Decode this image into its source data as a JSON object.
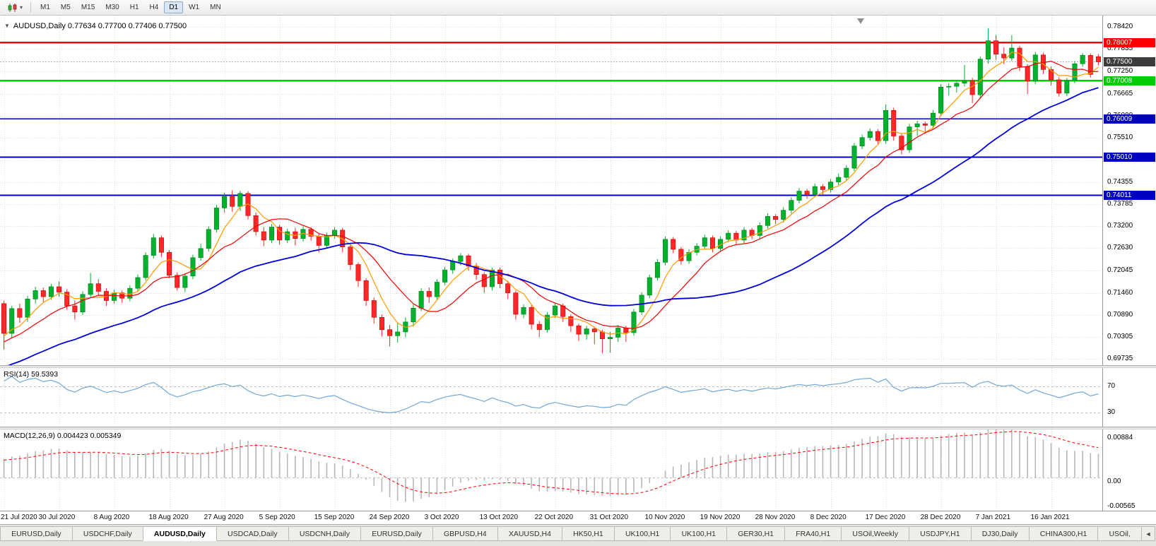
{
  "window": {
    "toolbar": {
      "timeframes": [
        "M1",
        "M5",
        "M15",
        "M30",
        "H1",
        "H4",
        "D1",
        "W1",
        "MN"
      ],
      "active_timeframe": "D1"
    },
    "tabs": {
      "items": [
        "EURUSD,Daily",
        "USDCHF,Daily",
        "AUDUSD,Daily",
        "USDCAD,Daily",
        "USDCNH,Daily",
        "EURUSD,Daily",
        "GBPUSD,H4",
        "XAUUSD,H4",
        "HK50,H1",
        "UK100,H1",
        "UK100,H1",
        "GER30,H1",
        "FRA40,H1",
        "USOil,Weekly",
        "USDJPY,H1",
        "DJ30,Daily",
        "CHINA300,H1",
        "USOil,"
      ],
      "active_index": 2,
      "scroll_left_glyph": "◄"
    }
  },
  "chart": {
    "title": "AUDUSD,Daily 0.77634 0.77700 0.77406 0.77500",
    "symbol": "AUDUSD",
    "timeframe": "Daily",
    "open": "0.77634",
    "high": "0.77700",
    "low": "0.77406",
    "close": "0.77500"
  },
  "chart_data": {
    "type": "candlestick",
    "title": "AUDUSD,Daily",
    "x_labels": [
      "21 Jul 2020",
      "30 Jul 2020",
      "8 Aug 2020",
      "18 Aug 2020",
      "27 Aug 2020",
      "5 Sep 2020",
      "15 Sep 2020",
      "24 Sep 2020",
      "3 Oct 2020",
      "13 Oct 2020",
      "22 Oct 2020",
      "31 Oct 2020",
      "10 Nov 2020",
      "19 Nov 2020",
      "28 Nov 2020",
      "8 Dec 2020",
      "17 Dec 2020",
      "28 Dec 2020",
      "7 Jan 2021",
      "16 Jan 2021"
    ],
    "x_label_step": 7,
    "price_range": [
      0.6957,
      0.7871
    ],
    "price_ticks": [
      0.7842,
      0.77835,
      0.7725,
      0.76665,
      0.7608,
      0.7551,
      0.74925,
      0.74355,
      0.73785,
      0.732,
      0.7263,
      0.72045,
      0.7146,
      0.7089,
      0.70305,
      0.69735
    ],
    "bull_color": "#00b22c",
    "bear_color": "#ff2727",
    "candles": [
      [
        0.7118,
        0.7126,
        0.6998,
        0.704
      ],
      [
        0.704,
        0.7112,
        0.7028,
        0.7105
      ],
      [
        0.7105,
        0.7118,
        0.7068,
        0.7082
      ],
      [
        0.7082,
        0.7138,
        0.707,
        0.713
      ],
      [
        0.713,
        0.7162,
        0.7118,
        0.7152
      ],
      [
        0.7152,
        0.716,
        0.7122,
        0.7136
      ],
      [
        0.7136,
        0.717,
        0.7128,
        0.7162
      ],
      [
        0.7162,
        0.7176,
        0.7136,
        0.7148
      ],
      [
        0.7148,
        0.7156,
        0.7102,
        0.7112
      ],
      [
        0.7112,
        0.7126,
        0.7076,
        0.7096
      ],
      [
        0.7096,
        0.715,
        0.7088,
        0.7142
      ],
      [
        0.7142,
        0.7198,
        0.7134,
        0.717
      ],
      [
        0.717,
        0.7182,
        0.714,
        0.715
      ],
      [
        0.715,
        0.7158,
        0.7112,
        0.7126
      ],
      [
        0.7126,
        0.7154,
        0.7118,
        0.7146
      ],
      [
        0.7146,
        0.7152,
        0.712,
        0.7132
      ],
      [
        0.7132,
        0.7166,
        0.7124,
        0.7158
      ],
      [
        0.7158,
        0.7194,
        0.715,
        0.7186
      ],
      [
        0.7186,
        0.7252,
        0.7178,
        0.7244
      ],
      [
        0.7244,
        0.73,
        0.7236,
        0.729
      ],
      [
        0.729,
        0.7296,
        0.724,
        0.7252
      ],
      [
        0.7252,
        0.7258,
        0.7184,
        0.7192
      ],
      [
        0.7192,
        0.72,
        0.7152,
        0.716
      ],
      [
        0.716,
        0.7198,
        0.7148,
        0.719
      ],
      [
        0.719,
        0.7246,
        0.7182,
        0.7238
      ],
      [
        0.7238,
        0.7274,
        0.723,
        0.7262
      ],
      [
        0.7262,
        0.732,
        0.7254,
        0.7312
      ],
      [
        0.7312,
        0.7376,
        0.7304,
        0.7368
      ],
      [
        0.7368,
        0.7408,
        0.7356,
        0.7398
      ],
      [
        0.7398,
        0.7414,
        0.7358,
        0.7372
      ],
      [
        0.7372,
        0.7413,
        0.736,
        0.7406
      ],
      [
        0.7406,
        0.7412,
        0.7338,
        0.7348
      ],
      [
        0.7348,
        0.7356,
        0.7296,
        0.7306
      ],
      [
        0.7306,
        0.7318,
        0.7268,
        0.7284
      ],
      [
        0.7284,
        0.7326,
        0.7276,
        0.7318
      ],
      [
        0.7318,
        0.7324,
        0.7272,
        0.7284
      ],
      [
        0.7284,
        0.7314,
        0.7276,
        0.7306
      ],
      [
        0.7306,
        0.7316,
        0.727,
        0.7288
      ],
      [
        0.7288,
        0.732,
        0.728,
        0.7312
      ],
      [
        0.7312,
        0.7318,
        0.7282,
        0.7294
      ],
      [
        0.7294,
        0.7302,
        0.7252,
        0.727
      ],
      [
        0.727,
        0.7304,
        0.7262,
        0.7296
      ],
      [
        0.7296,
        0.7318,
        0.7288,
        0.731
      ],
      [
        0.731,
        0.7316,
        0.7252,
        0.7266
      ],
      [
        0.7266,
        0.7272,
        0.7206,
        0.722
      ],
      [
        0.722,
        0.7226,
        0.7162,
        0.7178
      ],
      [
        0.7178,
        0.7184,
        0.7112,
        0.7126
      ],
      [
        0.7126,
        0.7134,
        0.7066,
        0.7082
      ],
      [
        0.7082,
        0.709,
        0.7032,
        0.705
      ],
      [
        0.705,
        0.7062,
        0.7006,
        0.7034
      ],
      [
        0.7034,
        0.7066,
        0.7016,
        0.7044
      ],
      [
        0.7044,
        0.7082,
        0.703,
        0.707
      ],
      [
        0.707,
        0.7116,
        0.7058,
        0.7106
      ],
      [
        0.7106,
        0.7158,
        0.7098,
        0.715
      ],
      [
        0.715,
        0.716,
        0.712,
        0.7136
      ],
      [
        0.7136,
        0.7182,
        0.7128,
        0.7174
      ],
      [
        0.7174,
        0.7214,
        0.7166,
        0.7206
      ],
      [
        0.7206,
        0.7236,
        0.7196,
        0.7228
      ],
      [
        0.7228,
        0.725,
        0.7218,
        0.7243
      ],
      [
        0.7243,
        0.7248,
        0.7204,
        0.7216
      ],
      [
        0.7216,
        0.7224,
        0.718,
        0.7194
      ],
      [
        0.7194,
        0.72,
        0.7146,
        0.7162
      ],
      [
        0.7162,
        0.7212,
        0.7152,
        0.7206
      ],
      [
        0.7206,
        0.7212,
        0.7158,
        0.717
      ],
      [
        0.717,
        0.7178,
        0.713,
        0.7146
      ],
      [
        0.7146,
        0.7152,
        0.7076,
        0.709
      ],
      [
        0.709,
        0.7116,
        0.708,
        0.7108
      ],
      [
        0.7108,
        0.7114,
        0.705,
        0.7064
      ],
      [
        0.7064,
        0.7072,
        0.703,
        0.705
      ],
      [
        0.705,
        0.7096,
        0.7042,
        0.7088
      ],
      [
        0.7088,
        0.712,
        0.708,
        0.7112
      ],
      [
        0.7112,
        0.7118,
        0.707,
        0.7084
      ],
      [
        0.7084,
        0.709,
        0.7044,
        0.706
      ],
      [
        0.706,
        0.7066,
        0.702,
        0.7038
      ],
      [
        0.7038,
        0.706,
        0.7024,
        0.7052
      ],
      [
        0.7052,
        0.7058,
        0.7012,
        0.7044
      ],
      [
        0.7044,
        0.705,
        0.6988,
        0.7026
      ],
      [
        0.7026,
        0.7044,
        0.699,
        0.703
      ],
      [
        0.703,
        0.7062,
        0.7018,
        0.7054
      ],
      [
        0.7054,
        0.706,
        0.7018,
        0.7042
      ],
      [
        0.7042,
        0.7104,
        0.7034,
        0.7096
      ],
      [
        0.7096,
        0.7148,
        0.7088,
        0.714
      ],
      [
        0.714,
        0.7194,
        0.7132,
        0.7186
      ],
      [
        0.7186,
        0.7234,
        0.7178,
        0.7226
      ],
      [
        0.7226,
        0.7294,
        0.7218,
        0.7286
      ],
      [
        0.7286,
        0.7292,
        0.725,
        0.726
      ],
      [
        0.726,
        0.7266,
        0.722,
        0.723
      ],
      [
        0.723,
        0.726,
        0.7222,
        0.7252
      ],
      [
        0.7252,
        0.7276,
        0.7244,
        0.7268
      ],
      [
        0.7268,
        0.7298,
        0.726,
        0.729
      ],
      [
        0.729,
        0.7296,
        0.7252,
        0.7262
      ],
      [
        0.7262,
        0.7294,
        0.7254,
        0.7286
      ],
      [
        0.7286,
        0.731,
        0.7278,
        0.7302
      ],
      [
        0.7302,
        0.7308,
        0.7274,
        0.7284
      ],
      [
        0.7284,
        0.7318,
        0.7276,
        0.731
      ],
      [
        0.731,
        0.7316,
        0.7286,
        0.7296
      ],
      [
        0.7296,
        0.733,
        0.7288,
        0.7322
      ],
      [
        0.7322,
        0.7354,
        0.7314,
        0.7346
      ],
      [
        0.7346,
        0.7352,
        0.7326,
        0.7338
      ],
      [
        0.7338,
        0.737,
        0.733,
        0.7362
      ],
      [
        0.7362,
        0.7396,
        0.7354,
        0.7388
      ],
      [
        0.7388,
        0.742,
        0.738,
        0.7412
      ],
      [
        0.7412,
        0.7418,
        0.7392,
        0.7404
      ],
      [
        0.7404,
        0.7432,
        0.7396,
        0.7424
      ],
      [
        0.7424,
        0.743,
        0.7402,
        0.7416
      ],
      [
        0.7416,
        0.7444,
        0.7408,
        0.7436
      ],
      [
        0.7436,
        0.7458,
        0.7428,
        0.7448
      ],
      [
        0.7448,
        0.748,
        0.744,
        0.7472
      ],
      [
        0.7472,
        0.7538,
        0.7464,
        0.753
      ],
      [
        0.753,
        0.756,
        0.7522,
        0.7552
      ],
      [
        0.7552,
        0.7576,
        0.7544,
        0.7568
      ],
      [
        0.7568,
        0.7574,
        0.7536,
        0.7544
      ],
      [
        0.7544,
        0.7639,
        0.7536,
        0.7623
      ],
      [
        0.7623,
        0.763,
        0.7544,
        0.7556
      ],
      [
        0.7556,
        0.7562,
        0.7508,
        0.752
      ],
      [
        0.752,
        0.7588,
        0.7512,
        0.758
      ],
      [
        0.758,
        0.7596,
        0.7556,
        0.7588
      ],
      [
        0.7588,
        0.7594,
        0.7562,
        0.7584
      ],
      [
        0.7584,
        0.7624,
        0.7576,
        0.7616
      ],
      [
        0.7616,
        0.7692,
        0.7608,
        0.7684
      ],
      [
        0.7684,
        0.7694,
        0.7662,
        0.7686
      ],
      [
        0.7686,
        0.7702,
        0.767,
        0.7694
      ],
      [
        0.7694,
        0.7742,
        0.7686,
        0.77
      ],
      [
        0.77,
        0.7708,
        0.7642,
        0.7664
      ],
      [
        0.7664,
        0.7764,
        0.7656,
        0.7757
      ],
      [
        0.7757,
        0.7838,
        0.7745,
        0.7805
      ],
      [
        0.7805,
        0.782,
        0.7755,
        0.777
      ],
      [
        0.777,
        0.7788,
        0.7744,
        0.776
      ],
      [
        0.776,
        0.782,
        0.7752,
        0.7786
      ],
      [
        0.7786,
        0.7792,
        0.7726,
        0.7738
      ],
      [
        0.7738,
        0.7744,
        0.7666,
        0.77
      ],
      [
        0.77,
        0.7776,
        0.7692,
        0.7768
      ],
      [
        0.7768,
        0.7774,
        0.7718,
        0.773
      ],
      [
        0.773,
        0.7738,
        0.7688,
        0.7703
      ],
      [
        0.7703,
        0.771,
        0.7659,
        0.7668
      ],
      [
        0.7668,
        0.7708,
        0.766,
        0.7702
      ],
      [
        0.7702,
        0.7752,
        0.7694,
        0.7745
      ],
      [
        0.7745,
        0.7773,
        0.7737,
        0.7767
      ],
      [
        0.7767,
        0.7772,
        0.7709,
        0.7717
      ],
      [
        0.77634,
        0.777,
        0.77406,
        0.775
      ]
    ],
    "pre_closes": [
      0.6852,
      0.6844,
      0.6861,
      0.6874,
      0.6868,
      0.6882,
      0.6895,
      0.6888,
      0.6902,
      0.6915,
      0.6908,
      0.6922,
      0.6935,
      0.6928,
      0.6942,
      0.6955,
      0.6948,
      0.6962,
      0.6975,
      0.6968,
      0.6982,
      0.6995,
      0.6988,
      0.7002,
      0.7015,
      0.7008,
      0.7022,
      0.7035,
      0.7028,
      0.7042
    ],
    "moving_averages": [
      {
        "name": "sma-fast",
        "period": 5,
        "color": "#ff9a00",
        "width": 1.2
      },
      {
        "name": "sma-medium",
        "period": 10,
        "color": "#f20000",
        "width": 1.2
      },
      {
        "name": "sma-slow",
        "period": 30,
        "color": "#0000dc",
        "width": 1.8
      }
    ],
    "hlines": [
      {
        "value": 0.78007,
        "label": "0.78007",
        "color": "#ff0000",
        "width": 2.4
      },
      {
        "value": 0.77008,
        "label": "0.77008",
        "color": "#00cc00",
        "width": 2.4
      },
      {
        "value": 0.76009,
        "label": "0.76009",
        "color": "#0000c0",
        "width": 1.8
      },
      {
        "value": 0.7501,
        "label": "0.75010",
        "color": "#0000c0",
        "width": 1.8
      },
      {
        "value": 0.74011,
        "label": "0.74011",
        "color": "#0000c0",
        "width": 1.8
      }
    ],
    "current_price": {
      "value": 0.775,
      "label": "0.77500",
      "color": "#3c3c3c"
    },
    "rsi": {
      "label": "RSI(14) 59.5393",
      "period": 14,
      "current": 59.5393,
      "levels": [
        70,
        30
      ],
      "scale": [
        8,
        98
      ],
      "line_color": "#70a8d8",
      "level_color": "#c0c0c0"
    },
    "macd": {
      "label": "MACD(12,26,9) 0.004423 0.005349",
      "fast": 12,
      "slow": 26,
      "signal_period": 9,
      "current_macd": 0.004423,
      "current_signal": 0.005349,
      "scale": [
        -0.0068,
        0.0097
      ],
      "axis": [
        {
          "value": 0.00884,
          "label": "0.00884"
        },
        {
          "value": 0,
          "label": "0.00"
        },
        {
          "value": -0.00565,
          "label": "-0.00565"
        }
      ],
      "hist_color": "#b8b8b8",
      "signal_color": "#ff0000"
    }
  }
}
